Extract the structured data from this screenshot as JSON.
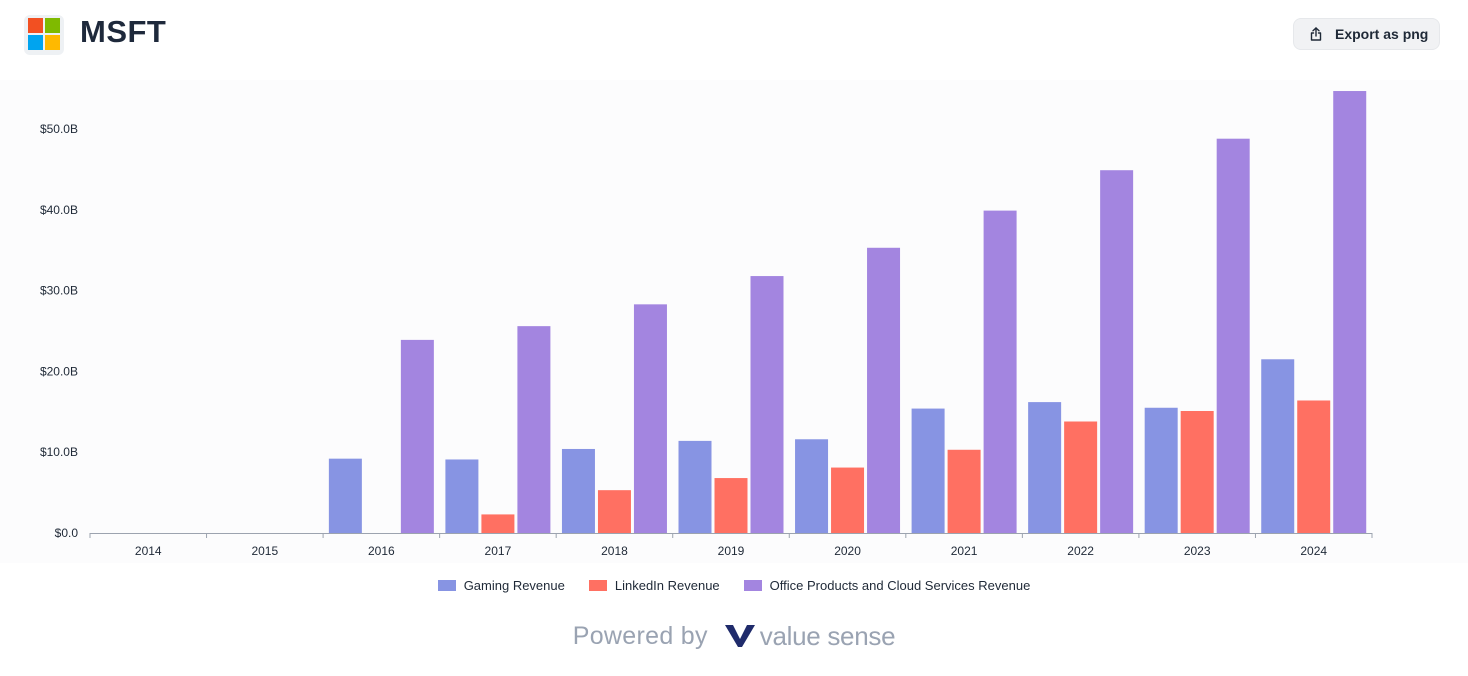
{
  "header": {
    "ticker": "MSFT",
    "export_label": "Export as png",
    "logo_colors": [
      "#f25022",
      "#7fba00",
      "#00a4ef",
      "#ffb900"
    ]
  },
  "chart_data": {
    "type": "bar",
    "categories": [
      "2014",
      "2015",
      "2016",
      "2017",
      "2018",
      "2019",
      "2020",
      "2021",
      "2022",
      "2023",
      "2024"
    ],
    "series": [
      {
        "name": "Gaming Revenue",
        "color": "#8794e3",
        "values": [
          null,
          null,
          9.2,
          9.1,
          10.4,
          11.4,
          11.6,
          15.4,
          16.2,
          15.5,
          21.5
        ]
      },
      {
        "name": "LinkedIn Revenue",
        "color": "#ff7062",
        "values": [
          null,
          null,
          null,
          2.3,
          5.3,
          6.8,
          8.1,
          10.3,
          13.8,
          15.1,
          16.4
        ]
      },
      {
        "name": "Office Products and Cloud Services Revenue",
        "color": "#a385e0",
        "values": [
          null,
          null,
          23.9,
          25.6,
          28.3,
          31.8,
          35.3,
          39.9,
          44.9,
          48.8,
          54.7
        ]
      }
    ],
    "yticks": [
      "$0.0",
      "$10.0B",
      "$20.0B",
      "$30.0B",
      "$40.0B",
      "$50.0B"
    ],
    "ylim": [
      0,
      55
    ],
    "xlabel": "",
    "ylabel": "",
    "legend_position": "bottom",
    "grid": false
  },
  "footer": {
    "powered_by": "Powered by",
    "brand": "value sense"
  }
}
